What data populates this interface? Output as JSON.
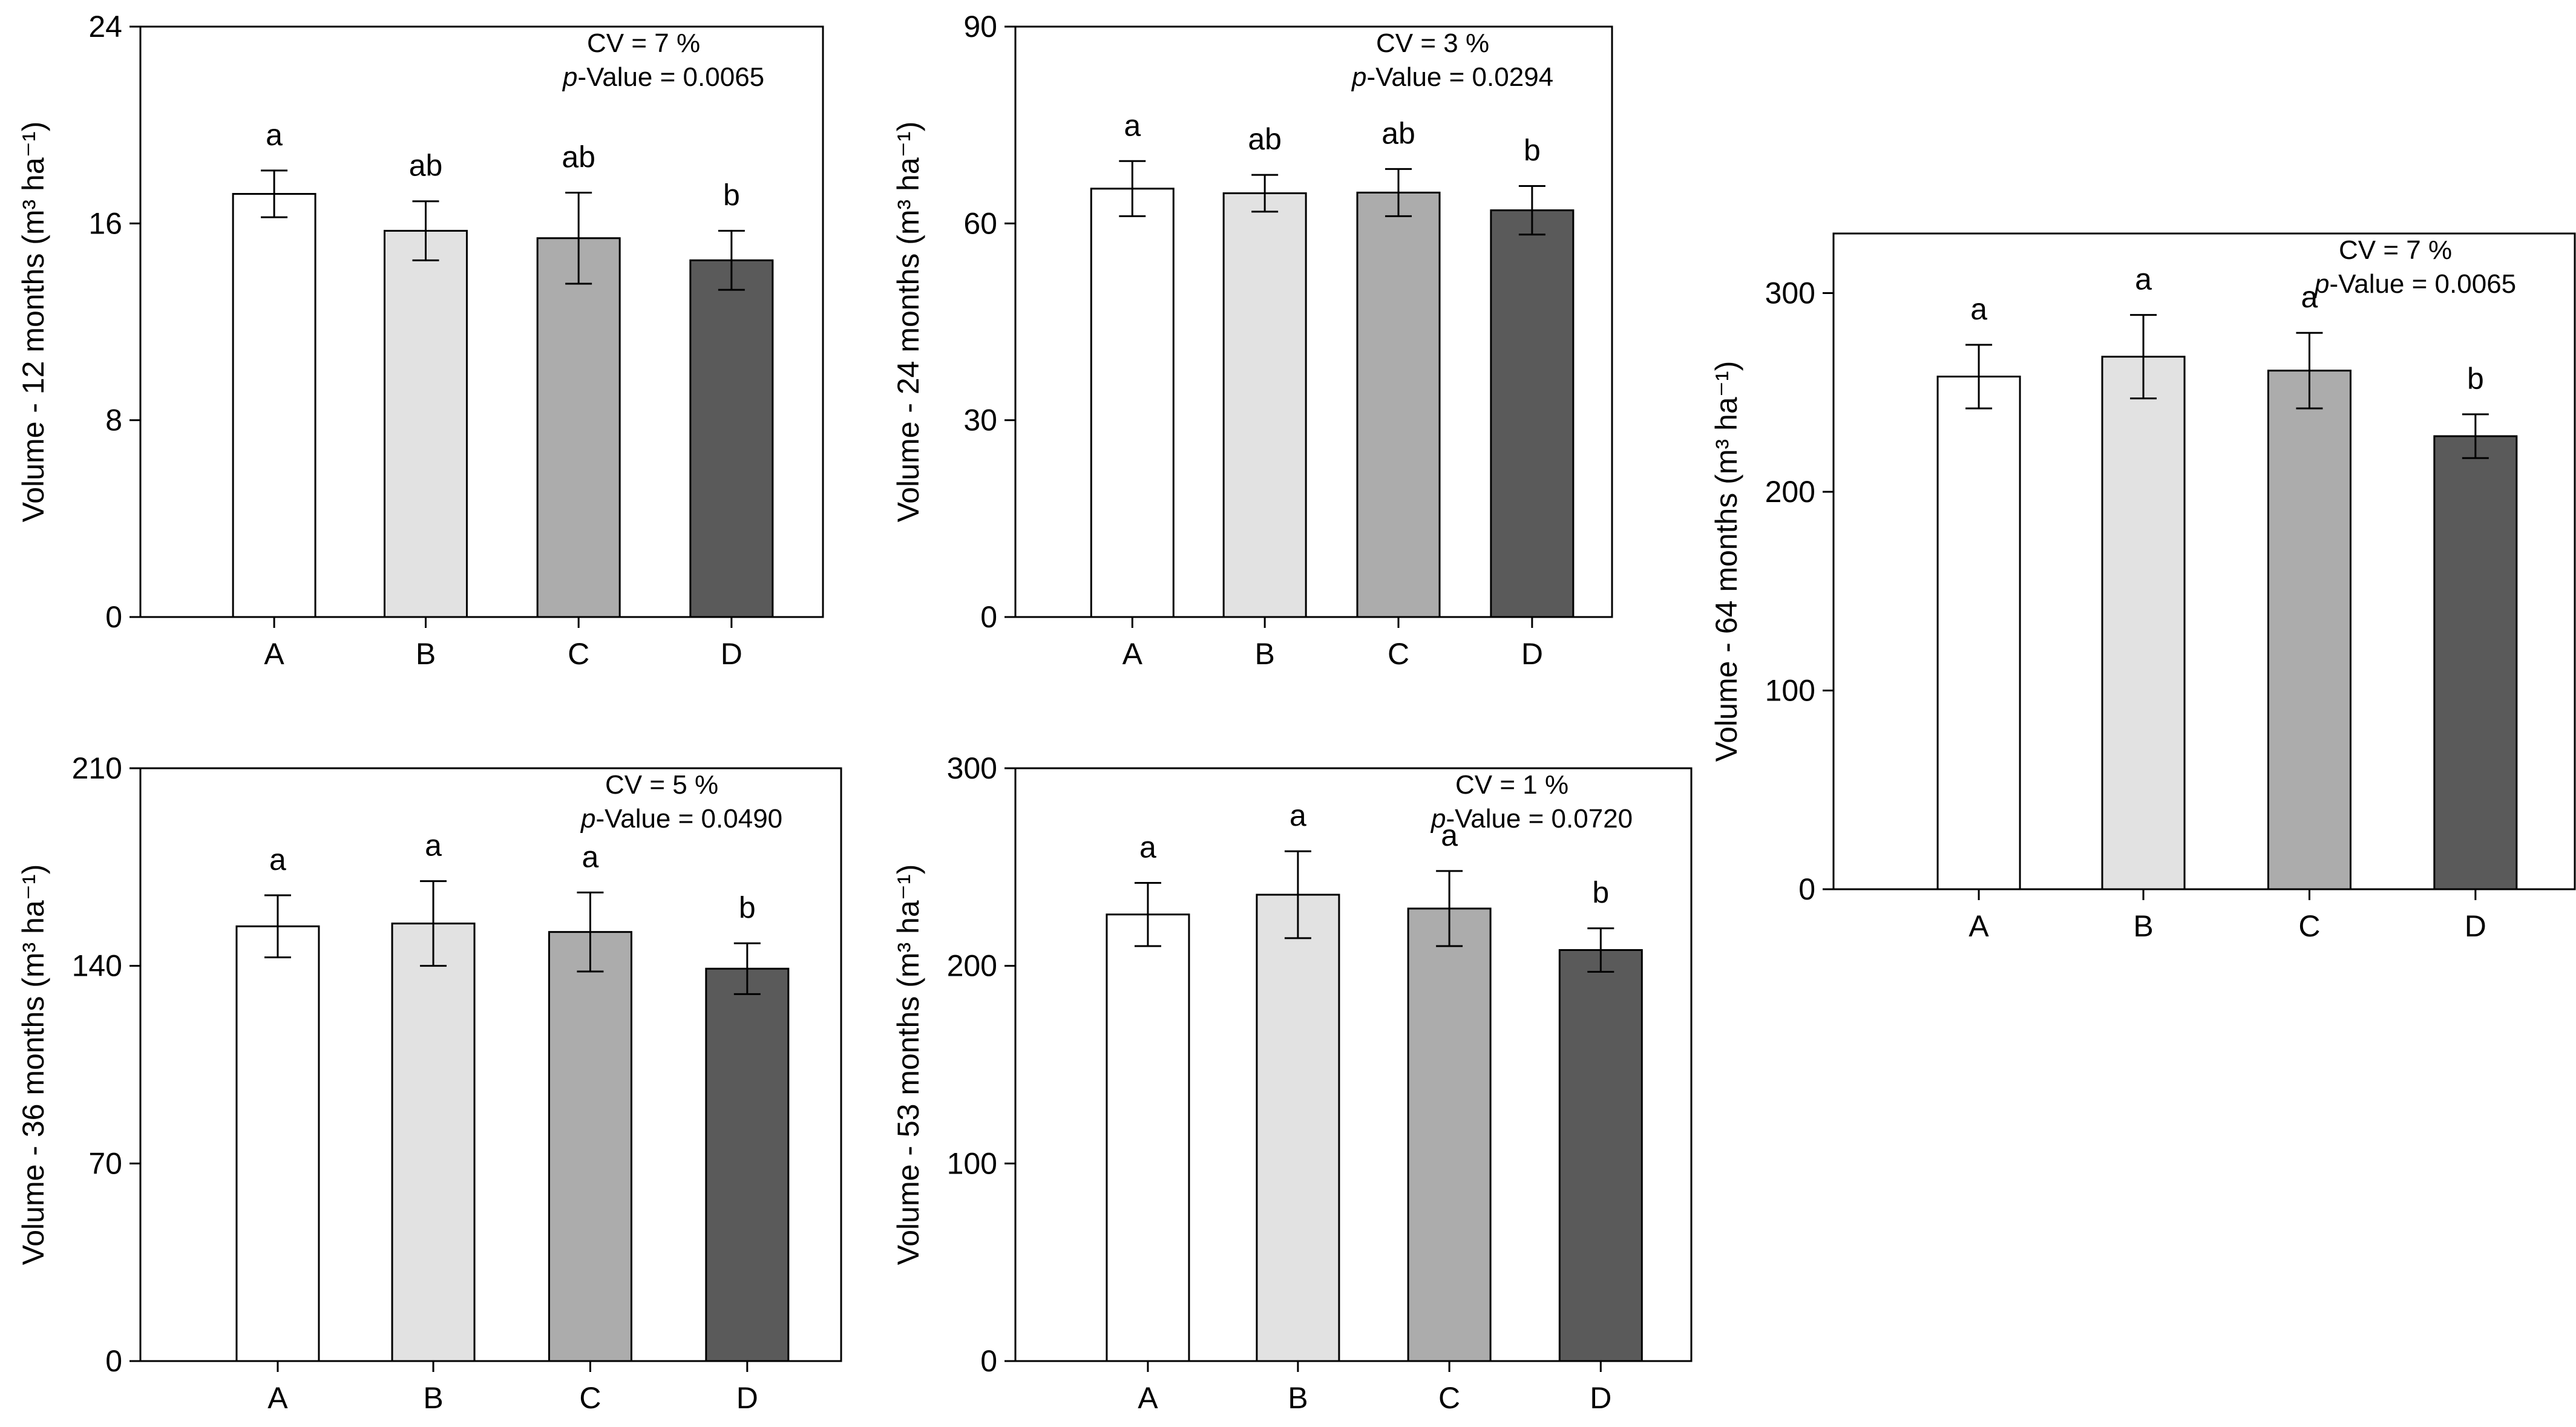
{
  "colors": {
    "A": "#ffffff",
    "B": "#e2e2e2",
    "C": "#acacac",
    "D": "#5a5a5a",
    "stroke": "#000000"
  },
  "chart_data": [
    {
      "id": "vol-12",
      "type": "bar",
      "ylabel": "Volume - 12 months",
      "yunit": "(m³ ha⁻¹)",
      "categories": [
        "A",
        "B",
        "C",
        "D"
      ],
      "values": [
        17.2,
        15.7,
        15.4,
        14.5
      ],
      "errors": [
        0.95,
        1.2,
        1.85,
        1.2
      ],
      "significance": [
        "a",
        "ab",
        "ab",
        "b"
      ],
      "ylim": [
        0,
        24
      ],
      "yticks": [
        0,
        8,
        16,
        24
      ],
      "stats": {
        "cv": "CV = 7 %",
        "p_italic": "p",
        "p_rest": "-Value = 0.0065"
      }
    },
    {
      "id": "vol-24",
      "type": "bar",
      "ylabel": "Volume - 24 months",
      "yunit": "(m³ ha⁻¹)",
      "categories": [
        "A",
        "B",
        "C",
        "D"
      ],
      "values": [
        65.3,
        64.6,
        64.7,
        62.0
      ],
      "errors": [
        4.2,
        2.8,
        3.6,
        3.7
      ],
      "significance": [
        "a",
        "ab",
        "ab",
        "b"
      ],
      "ylim": [
        0,
        90
      ],
      "yticks": [
        0,
        30,
        60,
        90
      ],
      "stats": {
        "cv": "CV = 3 %",
        "p_italic": "p",
        "p_rest": "-Value = 0.0294"
      }
    },
    {
      "id": "vol-36",
      "type": "bar",
      "ylabel": "Volume - 36 months",
      "yunit": "(m³ ha⁻¹)",
      "categories": [
        "A",
        "B",
        "C",
        "D"
      ],
      "values": [
        154.0,
        155.0,
        152.0,
        139.0
      ],
      "errors": [
        11.0,
        15.0,
        14.0,
        9.0
      ],
      "significance": [
        "a",
        "a",
        "a",
        "b"
      ],
      "ylim": [
        0,
        210
      ],
      "yticks": [
        0,
        70,
        140,
        210
      ],
      "stats": {
        "cv": "CV = 5 %",
        "p_italic": "p",
        "p_rest": "-Value = 0.0490"
      }
    },
    {
      "id": "vol-53",
      "type": "bar",
      "ylabel": "Volume - 53 months",
      "yunit": "(m³ ha⁻¹)",
      "categories": [
        "A",
        "B",
        "C",
        "D"
      ],
      "values": [
        226.0,
        236.0,
        229.0,
        208.0
      ],
      "errors": [
        16.0,
        22.0,
        19.0,
        11.0
      ],
      "significance": [
        "a",
        "a",
        "a",
        "b"
      ],
      "ylim": [
        0,
        300
      ],
      "yticks": [
        0,
        100,
        200,
        300
      ],
      "stats": {
        "cv": "CV = 1 %",
        "p_italic": "p",
        "p_rest": "-Value = 0.0720"
      }
    },
    {
      "id": "vol-64",
      "type": "bar",
      "ylabel": "Volume - 64 months",
      "yunit": "(m³ ha⁻¹)",
      "categories": [
        "A",
        "B",
        "C",
        "D"
      ],
      "values": [
        258.0,
        268.0,
        261.0,
        228.0
      ],
      "errors": [
        16.0,
        21.0,
        19.0,
        11.0
      ],
      "significance": [
        "a",
        "a",
        "a",
        "b"
      ],
      "ylim": [
        0,
        330
      ],
      "yticks": [
        0,
        100,
        200,
        300
      ],
      "stats": {
        "cv": "CV = 7 %",
        "p_italic": "p",
        "p_rest": "-Value = 0.0065"
      }
    }
  ]
}
